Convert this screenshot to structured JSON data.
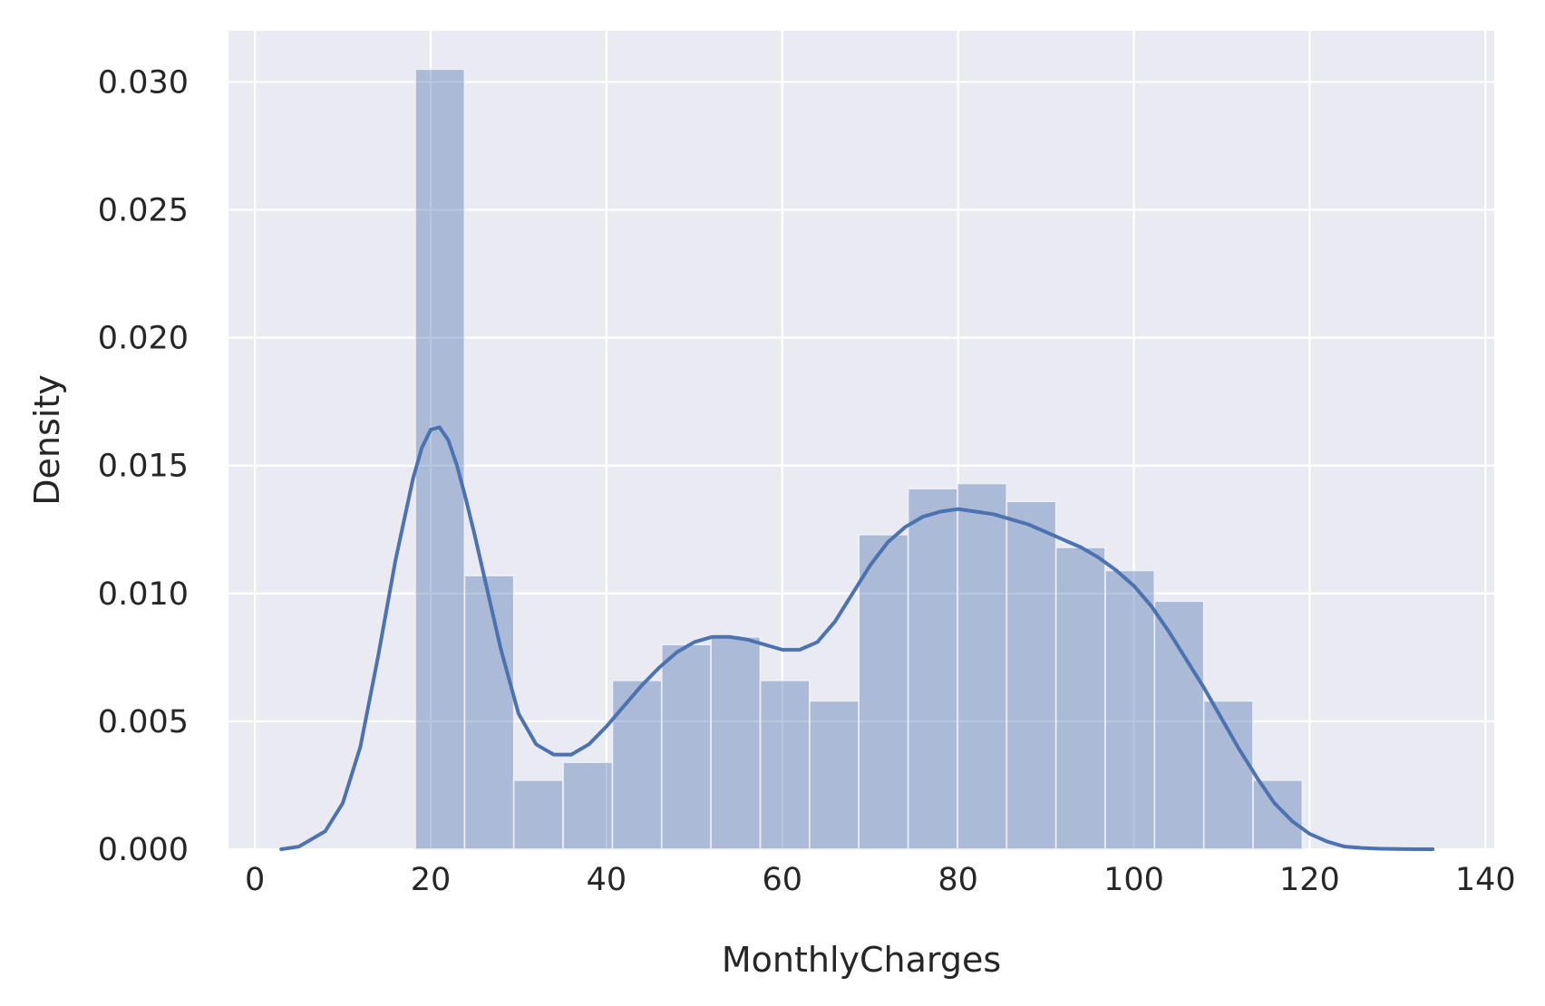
{
  "chart_data": {
    "type": "bar",
    "title": "",
    "xlabel": "MonthlyCharges",
    "ylabel": "Density",
    "xlim": [
      -3,
      141
    ],
    "ylim": [
      0,
      0.032
    ],
    "grid": true,
    "xticks": [
      0,
      20,
      40,
      60,
      80,
      100,
      120,
      140
    ],
    "xtick_labels": [
      "0",
      "20",
      "40",
      "60",
      "80",
      "100",
      "120",
      "140"
    ],
    "yticks": [
      0,
      0.005,
      0.01,
      0.015,
      0.02,
      0.025,
      0.03
    ],
    "ytick_labels": [
      "0.000",
      "0.005",
      "0.010",
      "0.015",
      "0.020",
      "0.025",
      "0.030"
    ],
    "bins": [
      {
        "x0": 18.25,
        "x1": 23.86,
        "value": 0.0305
      },
      {
        "x0": 23.86,
        "x1": 29.46,
        "value": 0.0107
      },
      {
        "x0": 29.46,
        "x1": 35.07,
        "value": 0.0027
      },
      {
        "x0": 35.07,
        "x1": 40.68,
        "value": 0.0034
      },
      {
        "x0": 40.68,
        "x1": 46.28,
        "value": 0.0066
      },
      {
        "x0": 46.28,
        "x1": 51.89,
        "value": 0.008
      },
      {
        "x0": 51.89,
        "x1": 57.5,
        "value": 0.0083
      },
      {
        "x0": 57.5,
        "x1": 63.1,
        "value": 0.0066
      },
      {
        "x0": 63.1,
        "x1": 68.71,
        "value": 0.0058
      },
      {
        "x0": 68.71,
        "x1": 74.32,
        "value": 0.0123
      },
      {
        "x0": 74.32,
        "x1": 79.92,
        "value": 0.0141
      },
      {
        "x0": 79.92,
        "x1": 85.53,
        "value": 0.0143
      },
      {
        "x0": 85.53,
        "x1": 91.14,
        "value": 0.0136
      },
      {
        "x0": 91.14,
        "x1": 96.74,
        "value": 0.0118
      },
      {
        "x0": 96.74,
        "x1": 102.35,
        "value": 0.0109
      },
      {
        "x0": 102.35,
        "x1": 107.96,
        "value": 0.0097
      },
      {
        "x0": 107.96,
        "x1": 113.56,
        "value": 0.0058
      },
      {
        "x0": 113.56,
        "x1": 119.17,
        "value": 0.0027
      }
    ],
    "kde": {
      "x": [
        3,
        5,
        8,
        10,
        12,
        14,
        16,
        18,
        19,
        20,
        21,
        22,
        23,
        24,
        25,
        26,
        28,
        30,
        32,
        34,
        36,
        38,
        40,
        42,
        44,
        46,
        48,
        50,
        52,
        54,
        56,
        58,
        60,
        62,
        64,
        66,
        68,
        70,
        72,
        74,
        76,
        78,
        80,
        82,
        84,
        86,
        88,
        90,
        92,
        94,
        96,
        98,
        100,
        102,
        104,
        106,
        108,
        110,
        112,
        114,
        116,
        118,
        120,
        122,
        124,
        126,
        128,
        130,
        132,
        134
      ],
      "y": [
        0.0,
        0.0001,
        0.0007,
        0.0018,
        0.004,
        0.0075,
        0.0113,
        0.0145,
        0.0157,
        0.0164,
        0.0165,
        0.016,
        0.015,
        0.0137,
        0.0123,
        0.0108,
        0.0078,
        0.0053,
        0.0041,
        0.0037,
        0.0037,
        0.0041,
        0.0048,
        0.0056,
        0.0064,
        0.0071,
        0.0077,
        0.0081,
        0.0083,
        0.0083,
        0.0082,
        0.008,
        0.0078,
        0.0078,
        0.0081,
        0.0089,
        0.01,
        0.0111,
        0.012,
        0.0126,
        0.013,
        0.0132,
        0.0133,
        0.0132,
        0.0131,
        0.0129,
        0.0127,
        0.0124,
        0.0121,
        0.0118,
        0.0114,
        0.0109,
        0.0103,
        0.0095,
        0.0085,
        0.0074,
        0.0063,
        0.0051,
        0.0039,
        0.0028,
        0.0018,
        0.0011,
        0.0006,
        0.0003,
        0.0001,
        5e-05,
        2e-05,
        1e-05,
        0.0,
        0.0
      ]
    },
    "colors": {
      "background": "#eaeaf2",
      "grid": "#ffffff",
      "bar_fill": "#4c72b0",
      "bar_fill_opacity": 0.4,
      "bar_edge": "#eef0f8",
      "kde_line": "#4c72b0",
      "text": "#262626"
    }
  }
}
